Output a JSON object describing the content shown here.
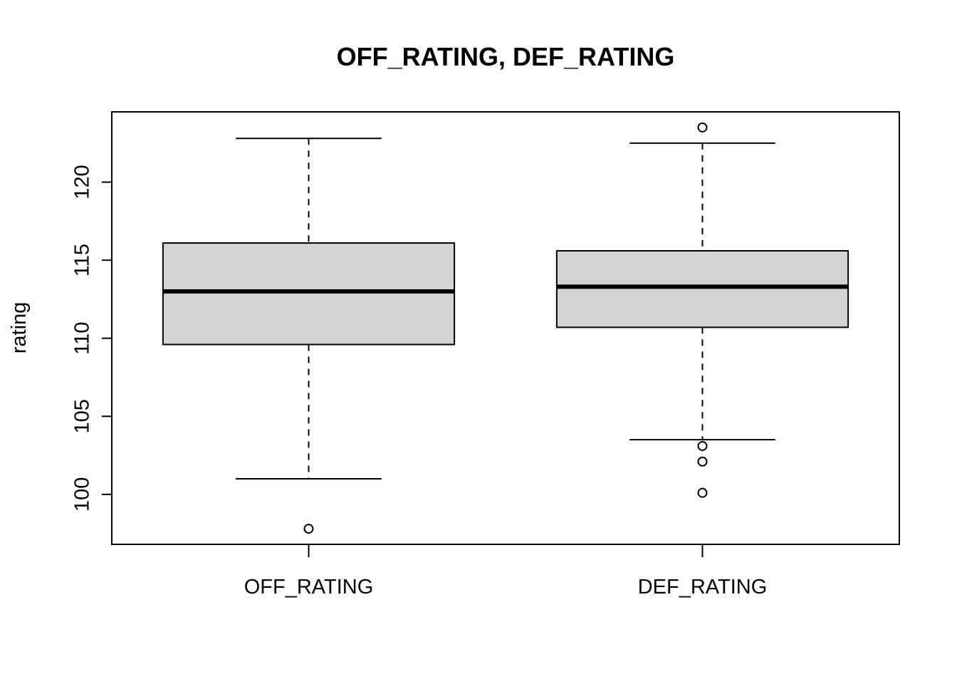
{
  "chart_data": {
    "type": "boxplot",
    "title": "OFF_RATING, DEF_RATING",
    "xlabel": "",
    "ylabel": "rating",
    "ylim": [
      96.8,
      124.5
    ],
    "yticks": [
      100,
      105,
      110,
      115,
      120
    ],
    "grid": false,
    "legend": "none",
    "box_fill": "#d3d3d3",
    "categories": [
      "OFF_RATING",
      "DEF_RATING"
    ],
    "boxes": [
      {
        "category": "OFF_RATING",
        "whisker_low": 101.0,
        "q1": 109.6,
        "median": 113.0,
        "q3": 116.1,
        "whisker_high": 122.8,
        "outliers": [
          97.8
        ]
      },
      {
        "category": "DEF_RATING",
        "whisker_low": 103.5,
        "q1": 110.7,
        "median": 113.3,
        "q3": 115.6,
        "whisker_high": 122.5,
        "outliers": [
          123.5,
          103.1,
          102.1,
          100.1
        ]
      }
    ]
  }
}
